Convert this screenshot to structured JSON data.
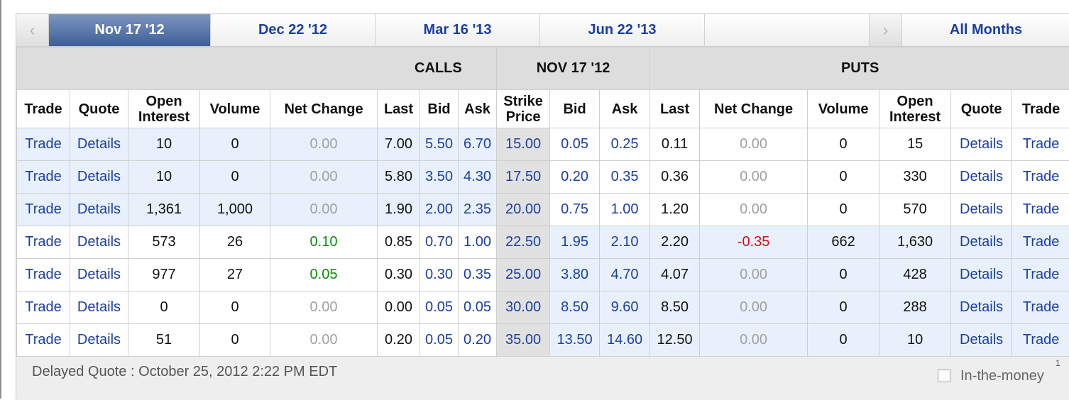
{
  "tabs": {
    "prev_arrow": "‹",
    "next_arrow": "›",
    "months": [
      "Nov 17 '12",
      "Dec 22 '12",
      "Mar 16 '13",
      "Jun 22 '13"
    ],
    "active_index": 0,
    "all_months": "All Months"
  },
  "groups": {
    "calls": "CALLS",
    "expiry": "NOV 17 '12",
    "puts": "PUTS"
  },
  "columns": {
    "trade": "Trade",
    "quote": "Quote",
    "open_interest": "Open Interest",
    "volume": "Volume",
    "net_change": "Net Change",
    "last": "Last",
    "bid": "Bid",
    "ask": "Ask",
    "strike": "Strike Price"
  },
  "links": {
    "trade": "Trade",
    "details": "Details"
  },
  "rows": [
    {
      "c_oi": "10",
      "c_vol": "0",
      "c_chg": "0.00",
      "c_last": "7.00",
      "c_bid": "5.50",
      "c_ask": "6.70",
      "strike": "15.00",
      "p_bid": "0.05",
      "p_ask": "0.25",
      "p_last": "0.11",
      "p_chg": "0.00",
      "p_vol": "0",
      "p_oi": "15",
      "c_itm": true,
      "p_itm": false
    },
    {
      "c_oi": "10",
      "c_vol": "0",
      "c_chg": "0.00",
      "c_last": "5.80",
      "c_bid": "3.50",
      "c_ask": "4.30",
      "strike": "17.50",
      "p_bid": "0.20",
      "p_ask": "0.35",
      "p_last": "0.36",
      "p_chg": "0.00",
      "p_vol": "0",
      "p_oi": "330",
      "c_itm": true,
      "p_itm": false
    },
    {
      "c_oi": "1,361",
      "c_vol": "1,000",
      "c_chg": "0.00",
      "c_last": "1.90",
      "c_bid": "2.00",
      "c_ask": "2.35",
      "strike": "20.00",
      "p_bid": "0.75",
      "p_ask": "1.00",
      "p_last": "1.20",
      "p_chg": "0.00",
      "p_vol": "0",
      "p_oi": "570",
      "c_itm": true,
      "p_itm": false
    },
    {
      "c_oi": "573",
      "c_vol": "26",
      "c_chg": "0.10",
      "c_last": "0.85",
      "c_bid": "0.70",
      "c_ask": "1.00",
      "strike": "22.50",
      "p_bid": "1.95",
      "p_ask": "2.10",
      "p_last": "2.20",
      "p_chg": "-0.35",
      "p_vol": "662",
      "p_oi": "1,630",
      "c_itm": false,
      "p_itm": true
    },
    {
      "c_oi": "977",
      "c_vol": "27",
      "c_chg": "0.05",
      "c_last": "0.30",
      "c_bid": "0.30",
      "c_ask": "0.35",
      "strike": "25.00",
      "p_bid": "3.80",
      "p_ask": "4.70",
      "p_last": "4.07",
      "p_chg": "0.00",
      "p_vol": "0",
      "p_oi": "428",
      "c_itm": false,
      "p_itm": true
    },
    {
      "c_oi": "0",
      "c_vol": "0",
      "c_chg": "0.00",
      "c_last": "0.00",
      "c_bid": "0.05",
      "c_ask": "0.05",
      "strike": "30.00",
      "p_bid": "8.50",
      "p_ask": "9.60",
      "p_last": "8.50",
      "p_chg": "0.00",
      "p_vol": "0",
      "p_oi": "288",
      "c_itm": false,
      "p_itm": true
    },
    {
      "c_oi": "51",
      "c_vol": "0",
      "c_chg": "0.00",
      "c_last": "0.20",
      "c_bid": "0.05",
      "c_ask": "0.20",
      "strike": "35.00",
      "p_bid": "13.50",
      "p_ask": "14.60",
      "p_last": "12.50",
      "p_chg": "0.00",
      "p_vol": "0",
      "p_oi": "10",
      "c_itm": false,
      "p_itm": true
    }
  ],
  "footer": {
    "delayed": "Delayed Quote : October 25, 2012 2:22 PM EDT",
    "itm_label": "In-the-money",
    "footnote": "1"
  },
  "colors": {
    "link": "#1b3fa1",
    "positive": "#0d8a0d",
    "negative": "#cc1111",
    "unchanged": "#a0a0a0",
    "itm_bg": "#e8f1fb",
    "active_tab": "#4a6aa2"
  }
}
